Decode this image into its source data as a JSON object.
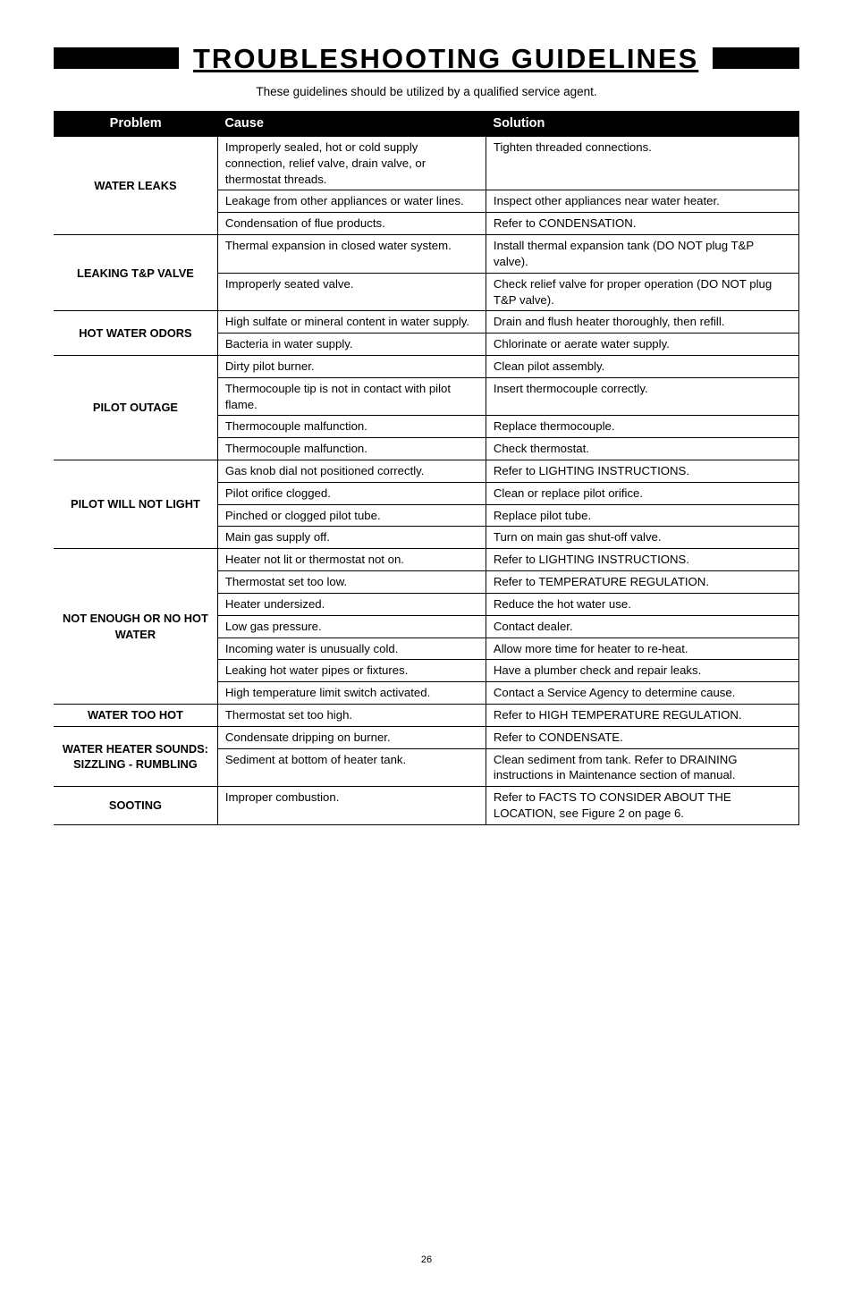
{
  "page_title": "TROUBLESHOOTING  GUIDELINES",
  "subtitle": "These guidelines should be utilized by a qualified service agent.",
  "table": {
    "headers": {
      "problem": "Problem",
      "cause": "Cause",
      "solution": "Solution"
    },
    "column_widths": {
      "problem_pct": 22,
      "cause_pct": 36,
      "solution_pct": 42
    },
    "groups": [
      {
        "problem": "WATER LEAKS",
        "rows": [
          {
            "cause": "Improperly sealed, hot or cold supply connection, relief valve, drain valve, or thermostat threads.",
            "solution": "Tighten threaded connections."
          },
          {
            "cause": "Leakage from other appliances or water lines.",
            "solution": "Inspect other appliances near water heater."
          },
          {
            "cause": "Condensation of flue products.",
            "solution": "Refer to CONDENSATION."
          }
        ]
      },
      {
        "problem": "LEAKING T&P VALVE",
        "rows": [
          {
            "cause": "Thermal expansion in closed water system.",
            "solution": "Install thermal expansion tank (DO NOT plug T&P valve)."
          },
          {
            "cause": "Improperly seated valve.",
            "solution": "Check relief valve for proper operation (DO NOT plug T&P valve)."
          }
        ]
      },
      {
        "problem": "HOT WATER ODORS",
        "rows": [
          {
            "cause": "High sulfate or mineral content in water supply.",
            "solution": "Drain and flush heater thoroughly, then refill."
          },
          {
            "cause": "Bacteria in water supply.",
            "solution": "Chlorinate or aerate water supply."
          }
        ]
      },
      {
        "problem": "PILOT OUTAGE",
        "rows": [
          {
            "cause": "Dirty pilot burner.",
            "solution": "Clean pilot assembly."
          },
          {
            "cause": "Thermocouple tip is not in contact with pilot flame.",
            "solution": "Insert thermocouple correctly."
          },
          {
            "cause": "Thermocouple malfunction.",
            "solution": "Replace thermocouple."
          },
          {
            "cause": "Thermocouple malfunction.",
            "solution": "Check thermostat."
          }
        ]
      },
      {
        "problem": "PILOT WILL NOT LIGHT",
        "rows": [
          {
            "cause": "Gas knob dial not positioned correctly.",
            "solution": "Refer to LIGHTING INSTRUCTIONS."
          },
          {
            "cause": "Pilot orifice clogged.",
            "solution": "Clean or replace pilot orifice."
          },
          {
            "cause": "Pinched or clogged pilot tube.",
            "solution": "Replace pilot tube."
          },
          {
            "cause": "Main gas supply off.",
            "solution": "Turn on main gas shut-off valve."
          }
        ]
      },
      {
        "problem": "NOT ENOUGH OR NO HOT WATER",
        "rows": [
          {
            "cause": "Heater not lit or thermostat not on.",
            "solution": "Refer to LIGHTING INSTRUCTIONS."
          },
          {
            "cause": "Thermostat set too low.",
            "solution": "Refer to TEMPERATURE REGULATION."
          },
          {
            "cause": "Heater undersized.",
            "solution": "Reduce the hot water use."
          },
          {
            "cause": "Low gas pressure.",
            "solution": "Contact dealer."
          },
          {
            "cause": "Incoming water is unusually cold.",
            "solution": "Allow more time for heater to re-heat."
          },
          {
            "cause": "Leaking hot water pipes or fixtures.",
            "solution": "Have a plumber check and repair leaks."
          },
          {
            "cause": "High temperature limit switch activated.",
            "solution": "Contact a Service Agency to determine cause."
          }
        ]
      },
      {
        "problem": "WATER TOO HOT",
        "rows": [
          {
            "cause": "Thermostat set too high.",
            "solution": "Refer to HIGH TEMPERATURE REGULATION."
          }
        ]
      },
      {
        "problem": "WATER HEATER SOUNDS: SIZZLING - RUMBLING",
        "rows": [
          {
            "cause": "Condensate dripping on burner.",
            "solution": "Refer to CONDENSATE."
          },
          {
            "cause": "Sediment at bottom of heater tank.",
            "solution": "Clean sediment from tank. Refer to DRAINING instructions in Maintenance section of manual."
          }
        ]
      },
      {
        "problem": "SOOTING",
        "rows": [
          {
            "cause": "Improper combustion.",
            "solution": "Refer to FACTS TO CONSIDER ABOUT THE LOCATION, see Figure 2 on page 6."
          }
        ]
      }
    ]
  },
  "page_number": "26",
  "styling": {
    "header_bg": "#000000",
    "header_fg": "#ffffff",
    "border_color": "#000000",
    "body_font_size": 13.2,
    "title_font_size": 31,
    "title_letter_spacing": 2
  }
}
